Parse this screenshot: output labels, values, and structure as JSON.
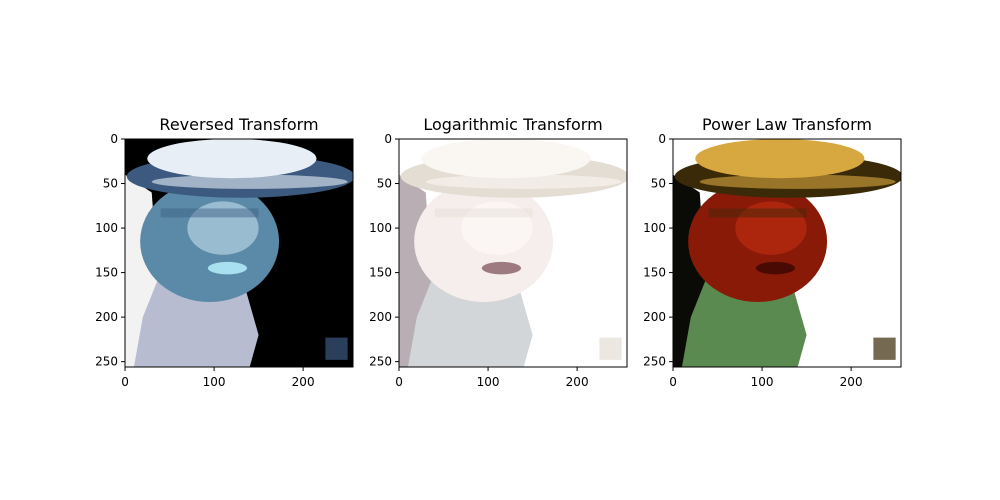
{
  "chart_data": [
    {
      "type": "image",
      "title": "Reversed Transform",
      "image_content": "color-inverted photo of a woman in a wide-brim hat and beaded collar",
      "colors": {
        "background": "#000000",
        "skin": "#5a8aa8",
        "skin_light": "#cfe6f2",
        "hat": "#3c5a80",
        "hat_light": "#e8eef6",
        "collar": "#b8bcd0",
        "lips": "#a8e0f0",
        "hair": "#f2f2f2"
      },
      "x_ticks": [
        0,
        100,
        200
      ],
      "y_ticks": [
        0,
        50,
        100,
        150,
        200,
        250
      ],
      "xlim": [
        0,
        256
      ],
      "ylim": [
        256,
        0
      ]
    },
    {
      "type": "image",
      "title": "Logarithmic Transform",
      "image_content": "very bright washed-out photo of a woman in a wide-brim hat and beaded collar",
      "colors": {
        "background": "#ffffff",
        "skin": "#f6eeec",
        "skin_light": "#fffdfc",
        "hat": "#e4ddd4",
        "hat_light": "#faf7f2",
        "collar": "#d2d6d8",
        "lips": "#9c7a80",
        "hair": "#b8aeb4"
      },
      "x_ticks": [
        0,
        100,
        200
      ],
      "y_ticks": [
        0,
        50,
        100,
        150,
        200,
        250
      ],
      "xlim": [
        0,
        256
      ],
      "ylim": [
        256,
        0
      ]
    },
    {
      "type": "image",
      "title": "Power Law Transform",
      "image_content": "dark high-contrast photo of a woman in a wide-brim hat and beaded collar",
      "colors": {
        "background": "#ffffff",
        "skin": "#8a1a08",
        "skin_light": "#c83214",
        "hat": "#3a2a08",
        "hat_light": "#d8a840",
        "collar": "#5a8a50",
        "lips": "#4a0a04",
        "hair": "#0a0a06"
      },
      "x_ticks": [
        0,
        100,
        200
      ],
      "y_ticks": [
        0,
        50,
        100,
        150,
        200,
        250
      ],
      "xlim": [
        0,
        256
      ],
      "ylim": [
        256,
        0
      ]
    }
  ]
}
